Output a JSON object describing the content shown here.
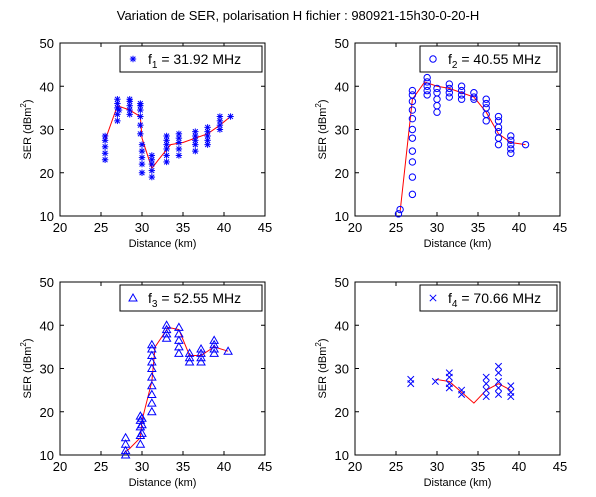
{
  "figure": {
    "title": "Variation de SER, polarisation H   fichier : 980921-15h30-0-20-H"
  },
  "chart_data": [
    {
      "type": "scatter",
      "legend_label": {
        "prefix": "f",
        "sub": "1",
        "rest": " = 31.92 MHz"
      },
      "marker": "asterisk",
      "color": "#0000ff",
      "line_color": "#ff0000",
      "xlabel": "Distance (km)",
      "ylabel": "SER (dBm2)",
      "xlim": [
        20,
        45
      ],
      "ylim": [
        10,
        50
      ],
      "xticks": [
        20,
        25,
        30,
        35,
        40,
        45
      ],
      "yticks": [
        10,
        20,
        30,
        40,
        50
      ],
      "legend": "top-right",
      "line": {
        "x": [
          25.5,
          27.0,
          28.5,
          29.8,
          30.0,
          31.2,
          32.0,
          33.5,
          35.0,
          36.5,
          38.0,
          39.5,
          40.8
        ],
        "y": [
          27.5,
          35.5,
          34.5,
          33.0,
          28.0,
          21.0,
          23.0,
          26.5,
          27.0,
          28.0,
          29.0,
          31.0,
          33.0
        ]
      },
      "points": [
        [
          25.5,
          23
        ],
        [
          25.5,
          24.5
        ],
        [
          25.5,
          26
        ],
        [
          25.5,
          27.5
        ],
        [
          25.5,
          28.5
        ],
        [
          27.0,
          32
        ],
        [
          27.0,
          33.5
        ],
        [
          27.0,
          35
        ],
        [
          27.0,
          36
        ],
        [
          27.0,
          37
        ],
        [
          27.2,
          34.5
        ],
        [
          28.5,
          33.5
        ],
        [
          28.5,
          34.5
        ],
        [
          28.5,
          35.5
        ],
        [
          28.5,
          36.5
        ],
        [
          28.5,
          37
        ],
        [
          29.8,
          29
        ],
        [
          29.8,
          31
        ],
        [
          29.8,
          33
        ],
        [
          29.8,
          34.5
        ],
        [
          29.8,
          35.5
        ],
        [
          29.8,
          36
        ],
        [
          30.0,
          20
        ],
        [
          30.0,
          22
        ],
        [
          30.0,
          23.5
        ],
        [
          30.0,
          25
        ],
        [
          30.0,
          26.5
        ],
        [
          31.2,
          19
        ],
        [
          31.2,
          20.5
        ],
        [
          31.2,
          22
        ],
        [
          31.2,
          23
        ],
        [
          31.2,
          24
        ],
        [
          33.0,
          22.5
        ],
        [
          33.0,
          24
        ],
        [
          33.0,
          25.5
        ],
        [
          33.0,
          26.5
        ],
        [
          33.0,
          27.5
        ],
        [
          33.0,
          28.5
        ],
        [
          34.5,
          24
        ],
        [
          34.5,
          25.5
        ],
        [
          34.5,
          27
        ],
        [
          34.5,
          28
        ],
        [
          34.5,
          29
        ],
        [
          36.5,
          25
        ],
        [
          36.5,
          26.5
        ],
        [
          36.5,
          27.5
        ],
        [
          36.5,
          28.5
        ],
        [
          36.5,
          29.5
        ],
        [
          38.0,
          26.5
        ],
        [
          38.0,
          27.5
        ],
        [
          38.0,
          28.5
        ],
        [
          38.0,
          29.5
        ],
        [
          38.0,
          30.5
        ],
        [
          39.5,
          30
        ],
        [
          39.5,
          31
        ],
        [
          39.5,
          32
        ],
        [
          39.5,
          33
        ],
        [
          40.8,
          33
        ]
      ]
    },
    {
      "type": "scatter",
      "legend_label": {
        "prefix": "f",
        "sub": "2",
        "rest": " = 40.55 MHz"
      },
      "marker": "circle",
      "color": "#0000ff",
      "line_color": "#ff0000",
      "xlabel": "Distance (km)",
      "ylabel": "SER (dBm2)",
      "xlim": [
        20,
        45
      ],
      "ylim": [
        10,
        50
      ],
      "xticks": [
        20,
        25,
        30,
        35,
        40,
        45
      ],
      "yticks": [
        10,
        20,
        30,
        40,
        50
      ],
      "legend": "top-right",
      "line": {
        "x": [
          25.5,
          27.0,
          28.5,
          30.0,
          31.5,
          33.0,
          34.5,
          36.0,
          37.5,
          39.0,
          40.8
        ],
        "y": [
          11.0,
          37.0,
          41.0,
          40.0,
          39.5,
          38.5,
          37.5,
          34.0,
          29.0,
          27.0,
          26.5
        ]
      },
      "points": [
        [
          25.3,
          10.5
        ],
        [
          25.5,
          11.5
        ],
        [
          27.0,
          15
        ],
        [
          27.0,
          19
        ],
        [
          27.0,
          22.5
        ],
        [
          27.0,
          25
        ],
        [
          27.0,
          28
        ],
        [
          27.0,
          30
        ],
        [
          27.0,
          32.5
        ],
        [
          27.0,
          34.5
        ],
        [
          27.0,
          36.5
        ],
        [
          27.0,
          38
        ],
        [
          27.0,
          39
        ],
        [
          28.8,
          38
        ],
        [
          28.8,
          39
        ],
        [
          28.8,
          40
        ],
        [
          28.8,
          41
        ],
        [
          28.8,
          42
        ],
        [
          30.0,
          34
        ],
        [
          30.0,
          35.5
        ],
        [
          30.0,
          37
        ],
        [
          30.0,
          38.5
        ],
        [
          30.0,
          39.5
        ],
        [
          31.5,
          37.5
        ],
        [
          31.5,
          38.5
        ],
        [
          31.5,
          39.5
        ],
        [
          31.5,
          40.5
        ],
        [
          33.0,
          37
        ],
        [
          33.0,
          38
        ],
        [
          33.0,
          39
        ],
        [
          33.0,
          40
        ],
        [
          34.5,
          37
        ],
        [
          34.5,
          37.5
        ],
        [
          34.5,
          38.5
        ],
        [
          36.0,
          32
        ],
        [
          36.0,
          33.5
        ],
        [
          36.0,
          35
        ],
        [
          36.0,
          36
        ],
        [
          36.0,
          37
        ],
        [
          37.5,
          26.5
        ],
        [
          37.5,
          28
        ],
        [
          37.5,
          29.5
        ],
        [
          37.5,
          30.5
        ],
        [
          37.5,
          32
        ],
        [
          37.5,
          33
        ],
        [
          39.0,
          24.5
        ],
        [
          39.0,
          25.5
        ],
        [
          39.0,
          26.5
        ],
        [
          39.0,
          27.5
        ],
        [
          39.0,
          28.5
        ],
        [
          40.8,
          26.5
        ]
      ]
    },
    {
      "type": "scatter",
      "legend_label": {
        "prefix": "f",
        "sub": "3",
        "rest": " = 52.55 MHz"
      },
      "marker": "triangle",
      "color": "#0000ff",
      "line_color": "#ff0000",
      "xlabel": "Distance (km)",
      "ylabel": "SER (dBm2)",
      "xlim": [
        20,
        45
      ],
      "ylim": [
        10,
        50
      ],
      "xticks": [
        20,
        25,
        30,
        35,
        40,
        45
      ],
      "yticks": [
        10,
        20,
        30,
        40,
        50
      ],
      "legend": "top-right",
      "line": {
        "x": [
          27.8,
          28.5,
          29.8,
          30.0,
          31.2,
          31.6,
          33.2,
          34.5,
          35.8,
          37.2,
          38.8,
          40.5
        ],
        "y": [
          10.5,
          11.5,
          14.0,
          18.0,
          27.0,
          35.0,
          39.5,
          39.0,
          33.0,
          33.0,
          35.0,
          34.0
        ]
      },
      "points": [
        [
          28.0,
          10
        ],
        [
          28.0,
          11
        ],
        [
          28.0,
          12.5
        ],
        [
          28.0,
          14
        ],
        [
          29.8,
          12.5
        ],
        [
          29.8,
          14.5
        ],
        [
          29.8,
          16.5
        ],
        [
          29.8,
          18
        ],
        [
          29.8,
          19
        ],
        [
          30.0,
          15
        ],
        [
          30.0,
          17
        ],
        [
          30.0,
          18.5
        ],
        [
          31.2,
          20
        ],
        [
          31.2,
          22
        ],
        [
          31.2,
          24
        ],
        [
          31.2,
          26
        ],
        [
          31.2,
          28
        ],
        [
          31.2,
          30
        ],
        [
          31.2,
          31.5
        ],
        [
          31.2,
          33
        ],
        [
          31.2,
          34.5
        ],
        [
          31.2,
          35.5
        ],
        [
          33.0,
          37
        ],
        [
          33.0,
          38
        ],
        [
          33.0,
          39
        ],
        [
          33.0,
          40
        ],
        [
          34.5,
          33.5
        ],
        [
          34.5,
          35
        ],
        [
          34.5,
          36.5
        ],
        [
          34.5,
          38
        ],
        [
          34.5,
          39.5
        ],
        [
          35.8,
          31.5
        ],
        [
          35.8,
          32.5
        ],
        [
          35.8,
          33.5
        ],
        [
          37.2,
          31.5
        ],
        [
          37.2,
          32.5
        ],
        [
          37.2,
          33.5
        ],
        [
          37.2,
          34.5
        ],
        [
          38.8,
          33.5
        ],
        [
          38.8,
          34.5
        ],
        [
          38.8,
          35.5
        ],
        [
          38.8,
          36.5
        ],
        [
          40.5,
          34
        ]
      ]
    },
    {
      "type": "scatter",
      "legend_label": {
        "prefix": "f",
        "sub": "4",
        "rest": " = 70.66 MHz"
      },
      "marker": "x",
      "color": "#0000ff",
      "line_color": "#ff0000",
      "xlabel": "Distance (km)",
      "ylabel": "SER (dBm2)",
      "xlim": [
        20,
        45
      ],
      "ylim": [
        10,
        50
      ],
      "xticks": [
        20,
        25,
        30,
        35,
        40,
        45
      ],
      "yticks": [
        10,
        20,
        30,
        40,
        50
      ],
      "legend": "top-right",
      "line": {
        "x": [
          29.8,
          31.5,
          33.0,
          34.5,
          36.0,
          37.5,
          39.0
        ],
        "y": [
          27.5,
          27.0,
          24.5,
          22.0,
          25.0,
          26.5,
          25.0
        ]
      },
      "points": [
        [
          26.8,
          26.5
        ],
        [
          26.8,
          27.5
        ],
        [
          29.8,
          27.0
        ],
        [
          31.5,
          25.5
        ],
        [
          31.5,
          26.5
        ],
        [
          31.5,
          28.0
        ],
        [
          31.5,
          29.0
        ],
        [
          33.0,
          24.0
        ],
        [
          33.0,
          25.0
        ],
        [
          36.0,
          23.5
        ],
        [
          36.0,
          25.0
        ],
        [
          36.0,
          26.5
        ],
        [
          36.0,
          28.0
        ],
        [
          37.5,
          24.0
        ],
        [
          37.5,
          25.5
        ],
        [
          37.5,
          27.0
        ],
        [
          37.5,
          29.0
        ],
        [
          37.5,
          30.5
        ],
        [
          39.0,
          23.5
        ],
        [
          39.0,
          24.5
        ],
        [
          39.0,
          26.0
        ]
      ]
    }
  ]
}
